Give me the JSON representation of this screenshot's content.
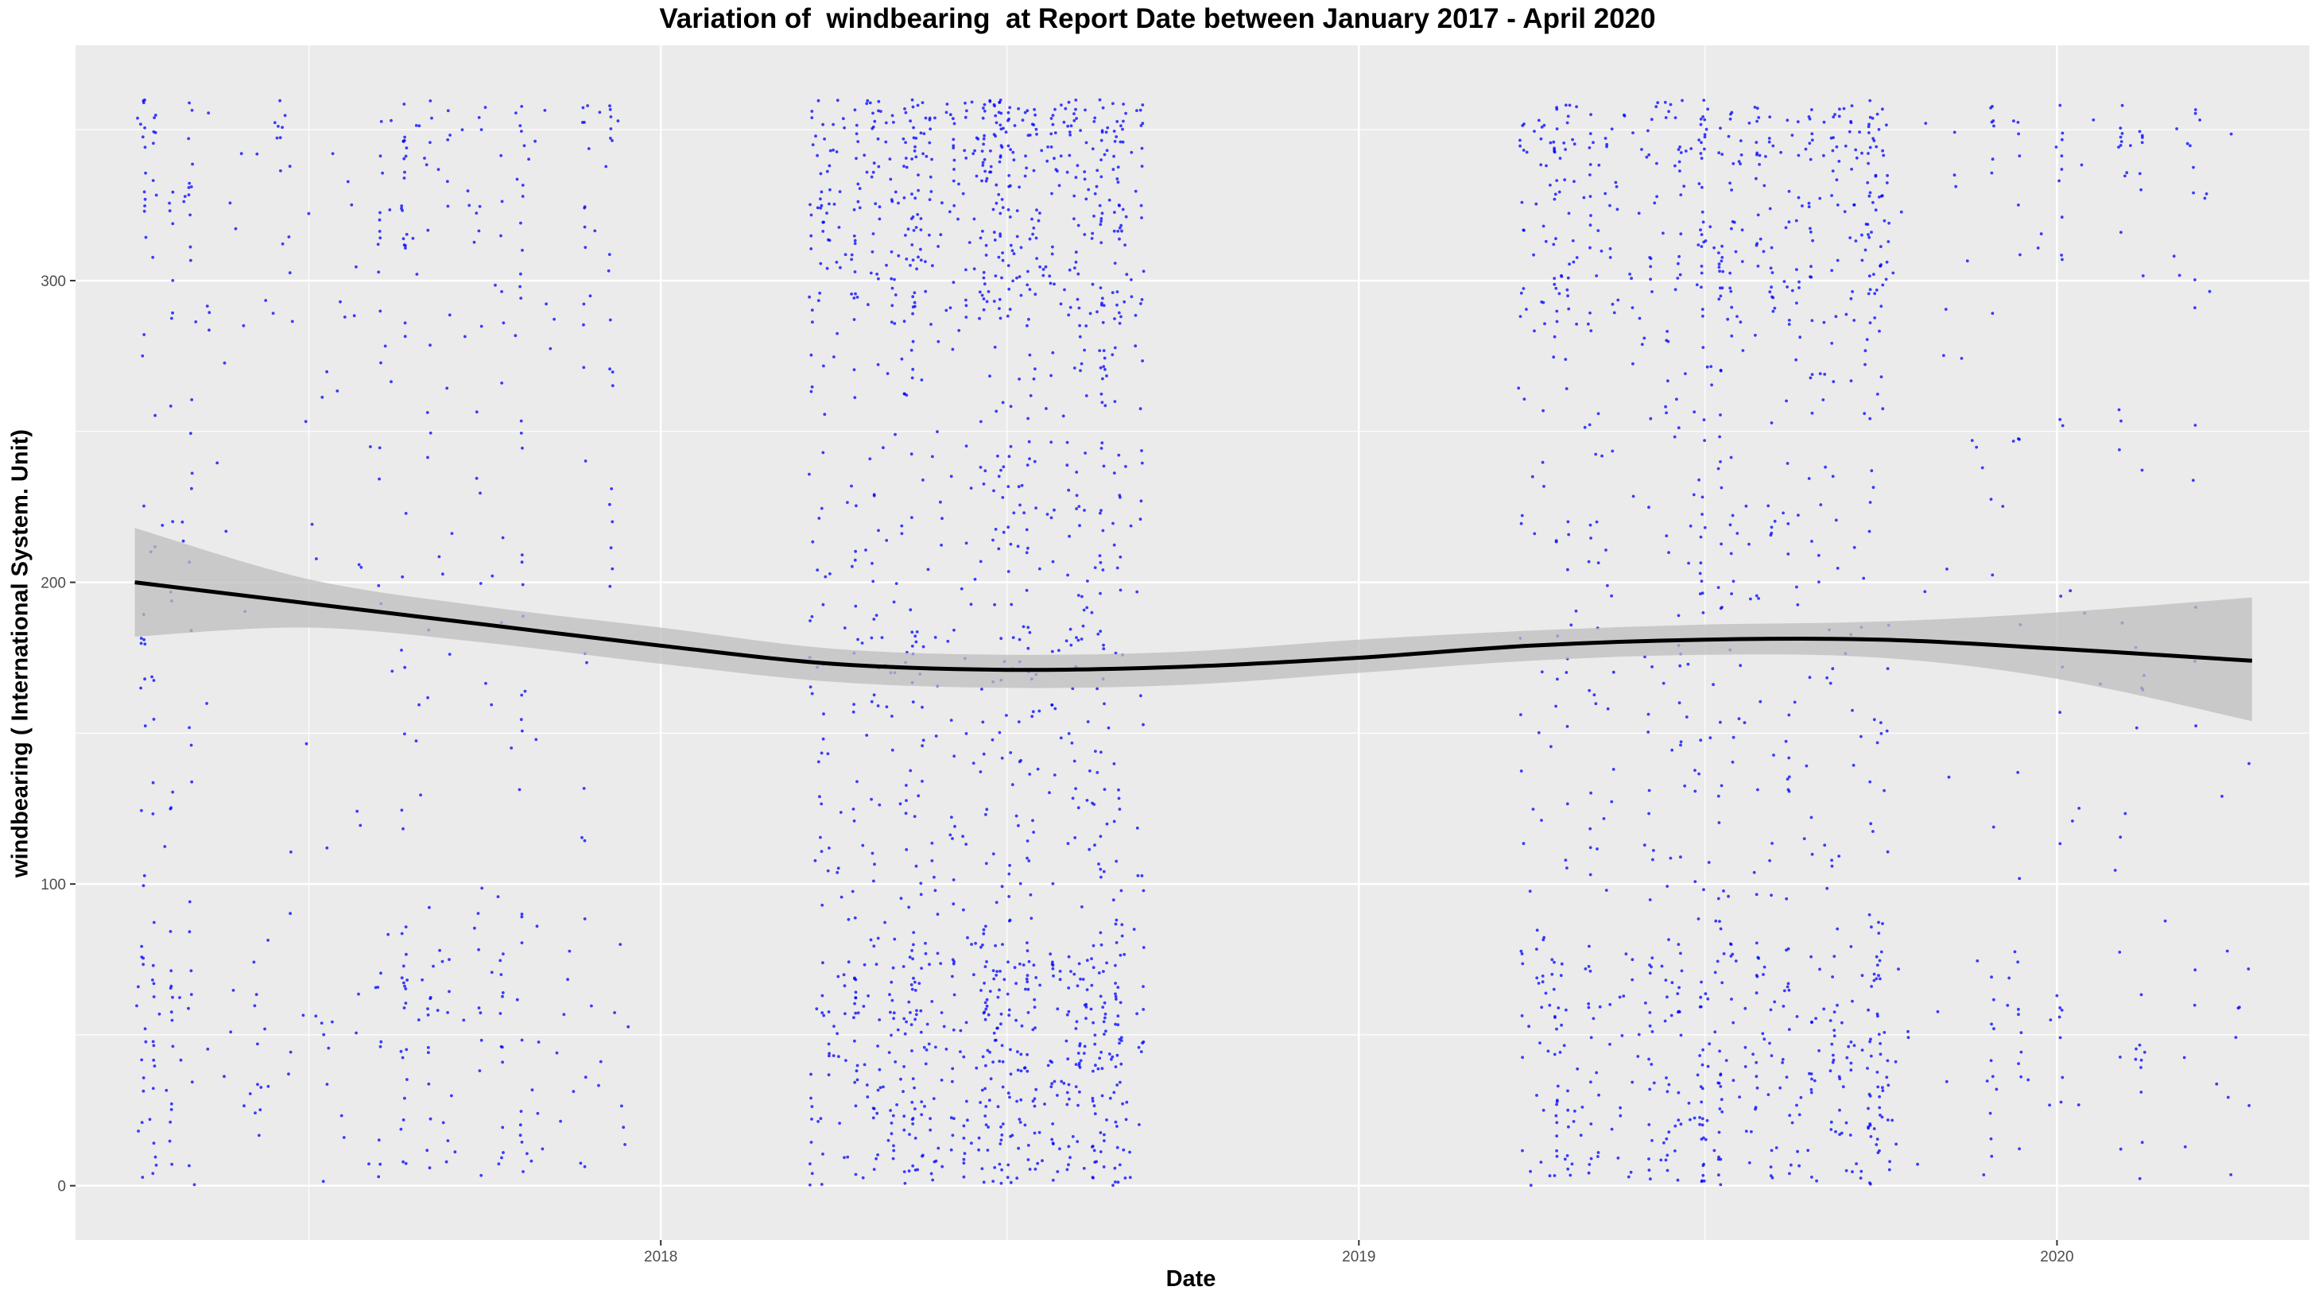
{
  "chart_data": {
    "type": "scatter",
    "title": "Variation of  windbearing  at Report Date between January 2017 - April 2020",
    "xlabel": "Date",
    "ylabel": "windbearing ( International System. Unit)",
    "x_ticks": [
      "2018",
      "2019",
      "2020"
    ],
    "y_ticks": [
      0,
      100,
      200,
      300
    ],
    "xlim": [
      "2017-03-01",
      "2020-05-12"
    ],
    "ylim": [
      -18,
      378
    ],
    "grid": true,
    "point_color": "#0000ff",
    "smooth_color": "#000000",
    "band_color": "#bdbdbd",
    "panel_color": "#ebebeb",
    "series": [
      {
        "name": "observations",
        "type": "scatter",
        "clusters": [
          {
            "x_start": "2017-04-01",
            "x_end": "2017-12-15",
            "n": 520
          },
          {
            "x_start": "2018-03-20",
            "x_end": "2018-09-10",
            "n": 1450
          },
          {
            "x_start": "2019-03-25",
            "x_end": "2019-10-05",
            "n": 1050
          },
          {
            "x_start": "2019-10-06",
            "x_end": "2020-04-12",
            "n": 190
          }
        ]
      },
      {
        "name": "smooth",
        "type": "line",
        "x": [
          "2017-04-01",
          "2017-07-01",
          "2017-10-01",
          "2018-01-01",
          "2018-04-01",
          "2018-07-01",
          "2018-10-01",
          "2019-01-01",
          "2019-04-01",
          "2019-07-01",
          "2019-10-01",
          "2020-01-01",
          "2020-04-12"
        ],
        "y": [
          200,
          193,
          186,
          179,
          173,
          171,
          172,
          175,
          179,
          181,
          181,
          178,
          174
        ],
        "lower": [
          182,
          185,
          180,
          173,
          167,
          165,
          166,
          170,
          174,
          176,
          175,
          168,
          154
        ],
        "upper": [
          218,
          201,
          192,
          185,
          178,
          176,
          177,
          181,
          184,
          186,
          187,
          190,
          195
        ]
      }
    ]
  }
}
